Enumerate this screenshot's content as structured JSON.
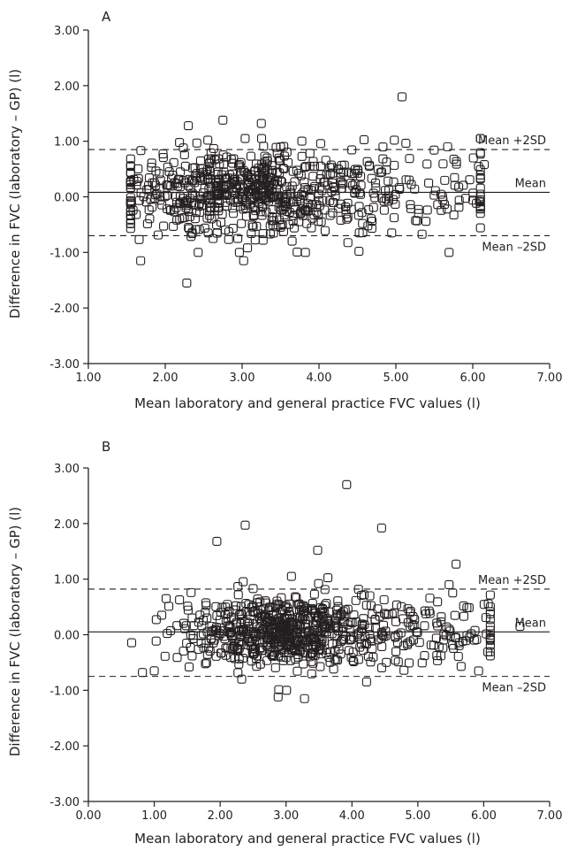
{
  "chart_data": [
    {
      "type": "scatter",
      "panel": "A",
      "xlabel": "Mean laboratory and general practice FVC values (l)",
      "ylabel": "Difference in FVC (laboratory – GP) (l)",
      "xlim": [
        1.0,
        7.0
      ],
      "ylim": [
        -3.0,
        3.0
      ],
      "x_ticks": [
        "1.00",
        "2.00",
        "3.00",
        "4.00",
        "5.00",
        "6.00",
        "7.00"
      ],
      "y_ticks": [
        "3.00",
        "2.00",
        "1.00",
        "0.00",
        "-1.00",
        "-2.00",
        "-3.00"
      ],
      "grid": false,
      "marker": "open-square",
      "reference_lines": [
        {
          "label": "Mean +2SD",
          "y": 0.85,
          "style": "dashed"
        },
        {
          "label": "Mean",
          "y": 0.08,
          "style": "solid"
        },
        {
          "label": "Mean –2SD",
          "y": -0.7,
          "style": "dashed"
        }
      ],
      "n_points": 740,
      "points_notable": [
        [
          5.08,
          1.8
        ],
        [
          2.28,
          -1.55
        ],
        [
          2.75,
          1.38
        ],
        [
          3.25,
          1.32
        ],
        [
          2.3,
          1.28
        ],
        [
          1.68,
          -1.15
        ],
        [
          3.02,
          -1.15
        ],
        [
          4.98,
          1.02
        ],
        [
          6.15,
          0.58
        ],
        [
          4.52,
          -0.98
        ]
      ],
      "bulk_distribution": {
        "x_mean": 3.1,
        "x_sd": 0.85,
        "y_mean": 0.08,
        "y_sd": 0.38
      }
    },
    {
      "type": "scatter",
      "panel": "B",
      "xlabel": "Mean laboratory and general practice FVC values (l)",
      "ylabel": "Difference in FVC (laboratory – GP) (l)",
      "xlim": [
        0.0,
        7.0
      ],
      "ylim": [
        -3.0,
        3.0
      ],
      "x_ticks": [
        "0.00",
        "1.00",
        "2.00",
        "3.00",
        "4.00",
        "5.00",
        "6.00",
        "7.00"
      ],
      "y_ticks": [
        "3.00",
        "2.00",
        "1.00",
        "0.00",
        "-1.00",
        "-2.00",
        "-3.00"
      ],
      "grid": false,
      "marker": "open-square",
      "reference_lines": [
        {
          "label": "Mean +2SD",
          "y": 0.82,
          "style": "dashed"
        },
        {
          "label": "Mean",
          "y": 0.05,
          "style": "solid"
        },
        {
          "label": "Mean –2SD",
          "y": -0.75,
          "style": "dashed"
        }
      ],
      "n_points": 740,
      "points_notable": [
        [
          3.92,
          2.7
        ],
        [
          2.38,
          1.97
        ],
        [
          4.45,
          1.92
        ],
        [
          1.95,
          1.68
        ],
        [
          3.48,
          1.52
        ],
        [
          5.58,
          1.27
        ],
        [
          0.82,
          -0.68
        ],
        [
          1.0,
          -0.65
        ],
        [
          1.18,
          0.65
        ],
        [
          2.88,
          -1.12
        ],
        [
          3.28,
          -1.15
        ],
        [
          6.55,
          0.15
        ]
      ],
      "bulk_distribution": {
        "x_mean": 2.95,
        "x_sd": 0.8,
        "y_mean": 0.05,
        "y_sd": 0.33
      }
    }
  ]
}
